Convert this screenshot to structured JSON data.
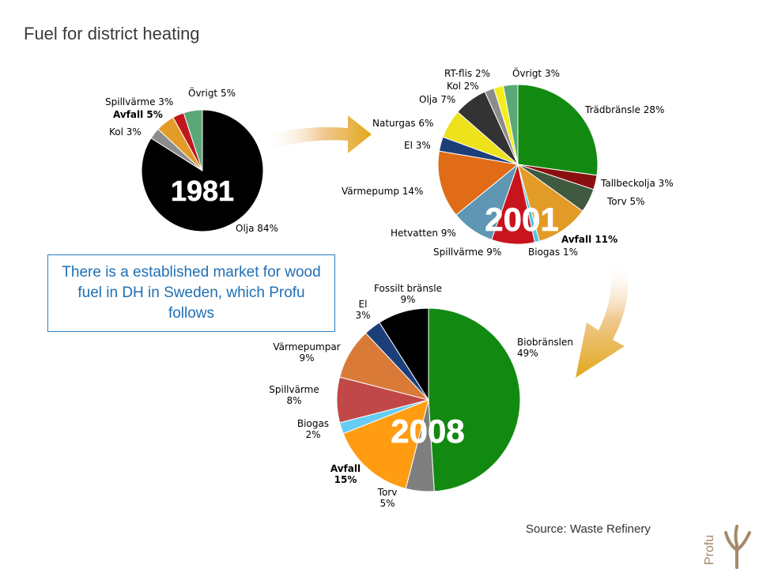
{
  "slide": {
    "title": "Fuel for district heating",
    "callout": "There is a established market for wood fuel in DH in Sweden, which Profu follows",
    "source": "Source: Waste Refinery",
    "logo_text": "Profu"
  },
  "chart_data": [
    {
      "type": "pie",
      "year_label": "1981",
      "year_color": "#ffffff",
      "slices": [
        {
          "label": "Olja 84%",
          "value": 84,
          "color": "#000000"
        },
        {
          "label": "Kol 3%",
          "value": 3,
          "color": "#8c8c8c"
        },
        {
          "label": "Avfall 5%",
          "value": 5,
          "color": "#e39b28",
          "bold": true
        },
        {
          "label": "Spillvärme 3%",
          "value": 3,
          "color": "#c0161d"
        },
        {
          "label": "Övrigt 5%",
          "value": 5,
          "color": "#5aa878"
        }
      ]
    },
    {
      "type": "pie",
      "year_label": "2001",
      "year_color": "#ffffff",
      "slices": [
        {
          "label": "Trädbränsle 28%",
          "value": 28,
          "color": "#128a12"
        },
        {
          "label": "Tallbeckolja 3%",
          "value": 3,
          "color": "#8a1010"
        },
        {
          "label": "Torv 5%",
          "value": 5,
          "color": "#3f5a3f"
        },
        {
          "label": "Avfall 11%",
          "value": 11,
          "color": "#e39b28",
          "bold": true
        },
        {
          "label": "Biogas 1%",
          "value": 1,
          "color": "#4ec5ea"
        },
        {
          "label": "Spillvärme 9%",
          "value": 9,
          "color": "#c8141c"
        },
        {
          "label": "Hetvatten 9%",
          "value": 9,
          "color": "#5e96b4"
        },
        {
          "label": "Värmepump 14%",
          "value": 14,
          "color": "#e06c18"
        },
        {
          "label": "El 3%",
          "value": 3,
          "color": "#1c3f7a"
        },
        {
          "label": "Naturgas 6%",
          "value": 6,
          "color": "#eee21c"
        },
        {
          "label": "Olja 7%",
          "value": 7,
          "color": "#333333"
        },
        {
          "label": "Kol 2%",
          "value": 2,
          "color": "#8c8c8c"
        },
        {
          "label": "RT-flis 2%",
          "value": 2,
          "color": "#f2ee1c"
        },
        {
          "label": "Övrigt 3%",
          "value": 3,
          "color": "#5aa878"
        }
      ]
    },
    {
      "type": "pie",
      "year_label": "2008",
      "year_color": "#ffffff",
      "slices": [
        {
          "label": "Biobränslen\n49%",
          "value": 49,
          "color": "#128a12"
        },
        {
          "label": "Torv\n5%",
          "value": 5,
          "color": "#7f7f7f"
        },
        {
          "label": "Avfall\n15%",
          "value": 15,
          "color": "#ff9c12",
          "bold": true
        },
        {
          "label": "Biogas\n2%",
          "value": 2,
          "color": "#66ccf2"
        },
        {
          "label": "Spillvärme\n8%",
          "value": 8,
          "color": "#c04848"
        },
        {
          "label": "Värmepumpar\n9%",
          "value": 9,
          "color": "#d97a38"
        },
        {
          "label": "El\n3%",
          "value": 3,
          "color": "#1c3f7a"
        },
        {
          "label": "Fossilt bränsle\n9%",
          "value": 9,
          "color": "#000000"
        }
      ]
    }
  ]
}
